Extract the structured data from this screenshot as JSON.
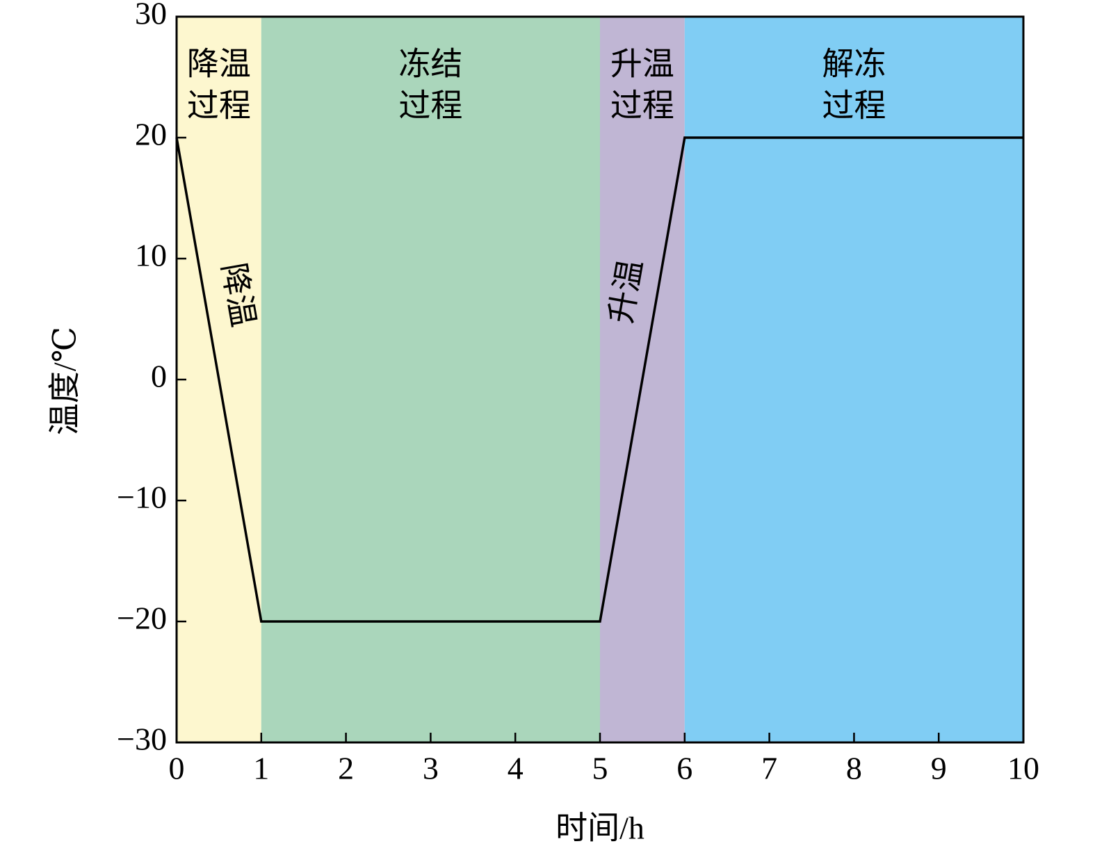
{
  "chart_data": {
    "type": "line",
    "xlabel": "时间/h",
    "ylabel": "温度/℃",
    "x": [
      0,
      1,
      5,
      6,
      10
    ],
    "series": [
      {
        "color": "#000000",
        "values": [
          20,
          -20,
          -20,
          20,
          20
        ]
      }
    ],
    "regions": [
      {
        "x": [
          0,
          1
        ],
        "color": "#fdf7cf",
        "label": [
          "降温",
          "过程"
        ]
      },
      {
        "x": [
          1,
          5
        ],
        "color": "#aad6bb",
        "label": [
          "冻结",
          "过程"
        ]
      },
      {
        "x": [
          5,
          6
        ],
        "color": "#c0b6d4",
        "label": [
          "升温",
          "过程"
        ]
      },
      {
        "x": [
          6,
          10
        ],
        "color": "#80cdf4",
        "label": [
          "解冻",
          "过程"
        ]
      }
    ],
    "annotations": [
      "降温",
      "升温"
    ],
    "xlim": [
      0,
      10
    ],
    "xticks": [
      0,
      1,
      2,
      3,
      4,
      5,
      6,
      7,
      8,
      9,
      10
    ],
    "ylim": [
      -30,
      30
    ],
    "yticks": [
      {
        "value": -30,
        "label": "−30"
      },
      {
        "value": -20,
        "label": "−20"
      },
      {
        "value": -10,
        "label": "−10"
      },
      0,
      10,
      20,
      30
    ]
  }
}
